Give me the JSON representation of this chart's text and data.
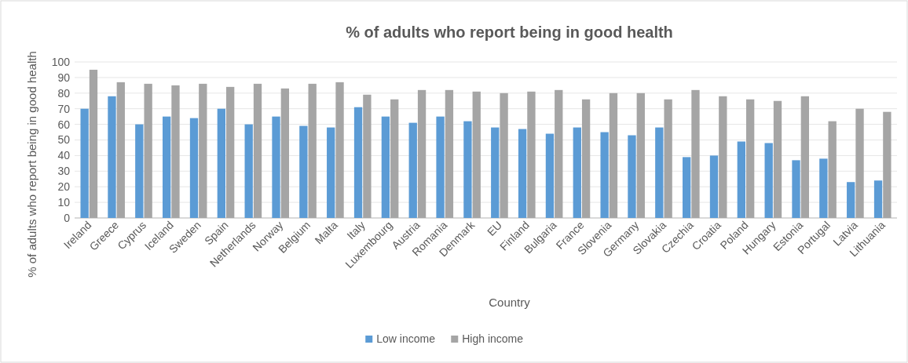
{
  "chart_data": {
    "type": "bar",
    "title": "% of adults who report being in good health",
    "xlabel": "Country",
    "ylabel": "% of adults who report being in good health",
    "categories": [
      "Ireland",
      "Greece",
      "Cyprus",
      "Iceland",
      "Sweden",
      "Spain",
      "Netherlands",
      "Norway",
      "Belgium",
      "Malta",
      "Italy",
      "Luxembourg",
      "Austria",
      "Romania",
      "Denmark",
      "EU",
      "Finland",
      "Bulgaria",
      "France",
      "Slovenia",
      "Germany",
      "Slovakia",
      "Czechia",
      "Croatia",
      "Poland",
      "Hungary",
      "Estonia",
      "Portugal",
      "Latvia",
      "Lithuania"
    ],
    "series": [
      {
        "name": "Low income",
        "color": "#5b9bd5",
        "values": [
          70,
          78,
          60,
          65,
          64,
          70,
          60,
          65,
          59,
          58,
          71,
          65,
          61,
          65,
          62,
          58,
          57,
          54,
          58,
          55,
          53,
          58,
          39,
          40,
          49,
          48,
          37,
          38,
          23,
          24
        ]
      },
      {
        "name": "High income",
        "color": "#a5a5a5",
        "values": [
          95,
          87,
          86,
          85,
          86,
          84,
          86,
          83,
          86,
          87,
          79,
          76,
          82,
          82,
          81,
          80,
          81,
          82,
          76,
          80,
          80,
          76,
          82,
          78,
          76,
          75,
          78,
          62,
          70,
          68
        ]
      }
    ],
    "ylim": [
      0,
      100
    ],
    "yticks": [
      0,
      10,
      20,
      30,
      40,
      50,
      60,
      70,
      80,
      90,
      100
    ],
    "grid": "y",
    "legend": "bottom"
  }
}
